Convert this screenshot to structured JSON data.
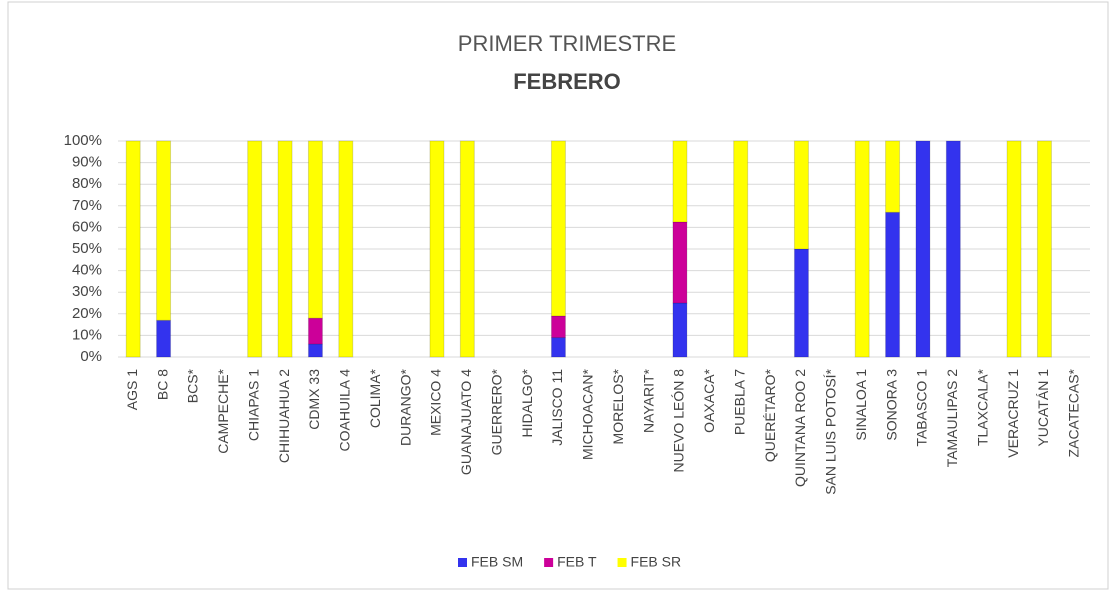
{
  "chart_data": {
    "type": "stacked_bar",
    "title": "PRIMER TRIMESTRE",
    "subtitle": "FEBRERO",
    "categories": [
      "AGS  1",
      "BC  8",
      "BCS*",
      "CAMPECHE*",
      "CHIAPAS 1",
      "CHIHUAHUA  2",
      "CDMX  33",
      "COAHUILA  4",
      "COLIMA*",
      "DURANGO*",
      "MEXICO  4",
      "GUANAJUATO  4",
      "GUERRERO*",
      "HIDALGO*",
      "JALISCO  11",
      "MICHOACAN*",
      "MORELOS*",
      "NAYARIT*",
      "NUEVO LEÓN 8",
      "OAXACA*",
      "PUEBLA 7",
      "QUERÉTARO*",
      "QUINTANA ROO 2",
      "SAN LUIS POTOSÍ*",
      "SINALOA 1",
      "SONORA  3",
      "TABASCO 1",
      "TAMAULIPAS 2",
      "TLAXCALA*",
      "VERACRUZ 1",
      "YUCATÁN 1",
      "ZACATECAS*"
    ],
    "series": [
      {
        "name": "FEB SM",
        "color": "#3333ee",
        "values": [
          0,
          17,
          null,
          null,
          0,
          0,
          6,
          0,
          null,
          null,
          0,
          0,
          null,
          null,
          9,
          null,
          null,
          null,
          25,
          null,
          0,
          null,
          50,
          null,
          0,
          67,
          100,
          100,
          null,
          0,
          0,
          null
        ]
      },
      {
        "name": "FEB T",
        "color": "#cc0099",
        "values": [
          0,
          0,
          null,
          null,
          0,
          0,
          12,
          0,
          null,
          null,
          0,
          0,
          null,
          null,
          10,
          null,
          null,
          null,
          37.5,
          null,
          0,
          null,
          0,
          null,
          0,
          0,
          0,
          0,
          null,
          0,
          0,
          null
        ]
      },
      {
        "name": "FEB SR",
        "color": "#ffff00",
        "values": [
          100,
          83,
          null,
          null,
          100,
          100,
          82,
          100,
          null,
          null,
          100,
          100,
          null,
          null,
          81,
          null,
          null,
          null,
          37.5,
          null,
          100,
          null,
          50,
          null,
          100,
          33,
          0,
          0,
          null,
          100,
          100,
          null
        ]
      }
    ],
    "ylim": [
      0,
      100
    ],
    "yticks": [
      {
        "value": 0,
        "label": "0%"
      },
      {
        "value": 10,
        "label": "10%"
      },
      {
        "value": 20,
        "label": "20%"
      },
      {
        "value": 30,
        "label": "30%"
      },
      {
        "value": 40,
        "label": "40%"
      },
      {
        "value": 50,
        "label": "50%"
      },
      {
        "value": 60,
        "label": "60%"
      },
      {
        "value": 70,
        "label": "70%"
      },
      {
        "value": 80,
        "label": "80%"
      },
      {
        "value": 90,
        "label": "90%"
      },
      {
        "value": 100,
        "label": "100%"
      }
    ],
    "grid": true,
    "legend": "bottom"
  }
}
